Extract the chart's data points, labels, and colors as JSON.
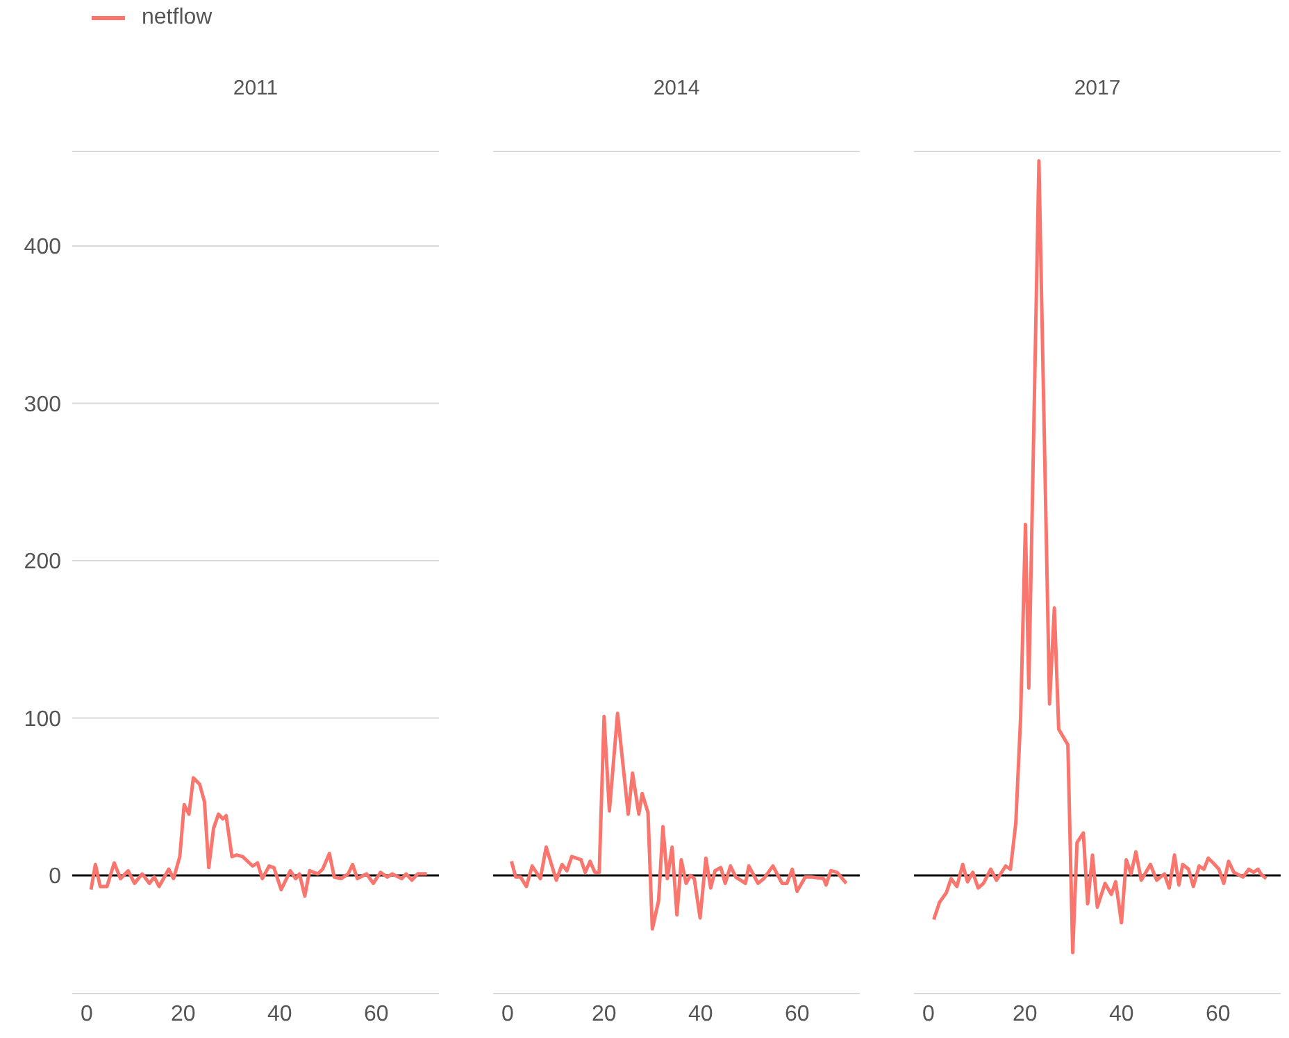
{
  "chart_data": [
    {
      "type": "line",
      "title": "2011",
      "legend": "top left",
      "grid": "y",
      "tick_labels": true,
      "xlim": [
        -3,
        73
      ],
      "xticks": [
        0,
        20,
        40,
        60
      ],
      "ylim": [
        -75,
        460
      ],
      "yticks": [
        0,
        100,
        200,
        300,
        400
      ],
      "ref_lines": [
        {
          "axis": "y",
          "value": 0,
          "color": "#000000"
        }
      ],
      "series": [
        {
          "name": "netflow",
          "color": "#f8766d",
          "x": [
            0.9,
            1.8,
            2.8,
            4.2,
            5.7,
            7,
            8.6,
            9.9,
            11.5,
            13,
            14,
            15,
            17,
            18,
            19.3,
            20.2,
            21.2,
            22.1,
            23.4,
            24.4,
            25.3,
            26.3,
            27.3,
            28.2,
            28.9,
            30.1,
            31.1,
            32.3,
            34.4,
            35.4,
            36.4,
            37.8,
            38.8,
            40.3,
            42.2,
            43.3,
            44.1,
            45.2,
            46.2,
            47.9,
            48.9,
            50.3,
            51.3,
            52.7,
            54.2,
            55.1,
            56.1,
            58,
            59.4,
            60.9,
            62.3,
            63.3,
            65.3,
            66.2,
            67.4,
            68.6,
            70.5
          ],
          "values": [
            -9,
            7,
            -7,
            -7,
            8,
            -2,
            3,
            -5,
            1,
            -5,
            -1,
            -7,
            4,
            -2,
            12,
            45,
            39,
            62,
            58,
            47,
            5,
            30,
            39,
            36,
            38,
            12,
            13,
            12,
            6,
            8,
            -2,
            6,
            5,
            -9,
            3,
            -2,
            1,
            -13,
            3,
            1,
            4,
            14,
            -1,
            -2,
            1,
            7,
            -2,
            1,
            -5,
            2,
            -1,
            1,
            -2,
            1,
            -3,
            1,
            1
          ]
        }
      ]
    },
    {
      "type": "line",
      "title": "2014",
      "grid": "y",
      "tick_labels": "x",
      "xlim": [
        -3,
        73
      ],
      "xticks": [
        0,
        20,
        40,
        60
      ],
      "ylim": [
        -75,
        460
      ],
      "yticks": [
        0,
        100,
        200,
        300,
        400
      ],
      "ref_lines": [
        {
          "axis": "y",
          "value": 0,
          "color": "#000000"
        }
      ],
      "series": [
        {
          "color": "#f8766d",
          "x": [
            0.8,
            1.7,
            2.7,
            3.9,
            5.1,
            6.8,
            8,
            10.1,
            11.3,
            12.3,
            13.3,
            15.2,
            16.1,
            17.1,
            18.1,
            19,
            20,
            21.1,
            22.8,
            25,
            25.9,
            27.2,
            27.9,
            29.1,
            30,
            31.3,
            32.2,
            33.1,
            34.1,
            35.1,
            36,
            37,
            37.9,
            38.7,
            39.9,
            41.1,
            42.1,
            43,
            44.2,
            45.1,
            46.2,
            47.3,
            49.3,
            50,
            51.9,
            53.1,
            55,
            56.9,
            57.9,
            59,
            60,
            61.7,
            63.1,
            65.5,
            66,
            67,
            68.3,
            70.2
          ],
          "values": [
            9,
            -1,
            -1,
            -7,
            6,
            -2,
            18,
            -3,
            7,
            3,
            12,
            10,
            2,
            9,
            2,
            2,
            101,
            41,
            103,
            39,
            65,
            39,
            52,
            40,
            -34,
            -16,
            31,
            -2,
            18,
            -25,
            10,
            -5,
            0,
            -2,
            -27,
            11,
            -8,
            3,
            5,
            -5,
            6,
            -1,
            -5,
            6,
            -5,
            -2,
            6,
            -5,
            -5,
            4,
            -10,
            -1,
            -1,
            -2,
            -6,
            3,
            2,
            -5
          ]
        }
      ]
    },
    {
      "type": "line",
      "title": "2017",
      "grid": "y",
      "tick_labels": "x",
      "xlim": [
        -3,
        73
      ],
      "xticks": [
        0,
        20,
        40,
        60
      ],
      "ylim": [
        -75,
        460
      ],
      "yticks": [
        0,
        100,
        200,
        300,
        400
      ],
      "ref_lines": [
        {
          "axis": "y",
          "value": 0,
          "color": "#000000"
        }
      ],
      "series": [
        {
          "color": "#f8766d",
          "x": [
            1.1,
            2.3,
            3.7,
            4.7,
            5.9,
            7.1,
            8.1,
            9.2,
            10.3,
            11.4,
            12.9,
            14.1,
            16,
            17,
            18.1,
            19.1,
            20.1,
            20.8,
            22.9,
            25.1,
            26.1,
            27,
            28.9,
            29.9,
            30.8,
            32.1,
            33,
            34,
            35,
            36.6,
            37.9,
            38.8,
            40,
            41,
            42,
            43,
            44.1,
            46,
            47.3,
            48.9,
            49.9,
            51,
            51.9,
            52.7,
            53.9,
            54.9,
            56.1,
            57.1,
            58,
            59,
            60.2,
            61.2,
            62.2,
            63.3,
            65.2,
            66.4,
            67.4,
            68.3,
            68.9,
            70
          ],
          "values": [
            -28,
            -17,
            -11,
            -2,
            -7,
            7,
            -4,
            2,
            -8,
            -5,
            4,
            -3,
            6,
            4,
            33,
            100,
            223,
            119,
            454,
            109,
            170,
            93,
            83,
            -49,
            21,
            27,
            -18,
            13,
            -20,
            -5,
            -12,
            -4,
            -30,
            10,
            1,
            15,
            -3,
            7,
            -3,
            1,
            -8,
            13,
            -6,
            7,
            4,
            -7,
            6,
            4,
            11,
            8,
            4,
            -5,
            9,
            2,
            -1,
            4,
            2,
            4,
            1,
            -2
          ]
        }
      ]
    }
  ]
}
